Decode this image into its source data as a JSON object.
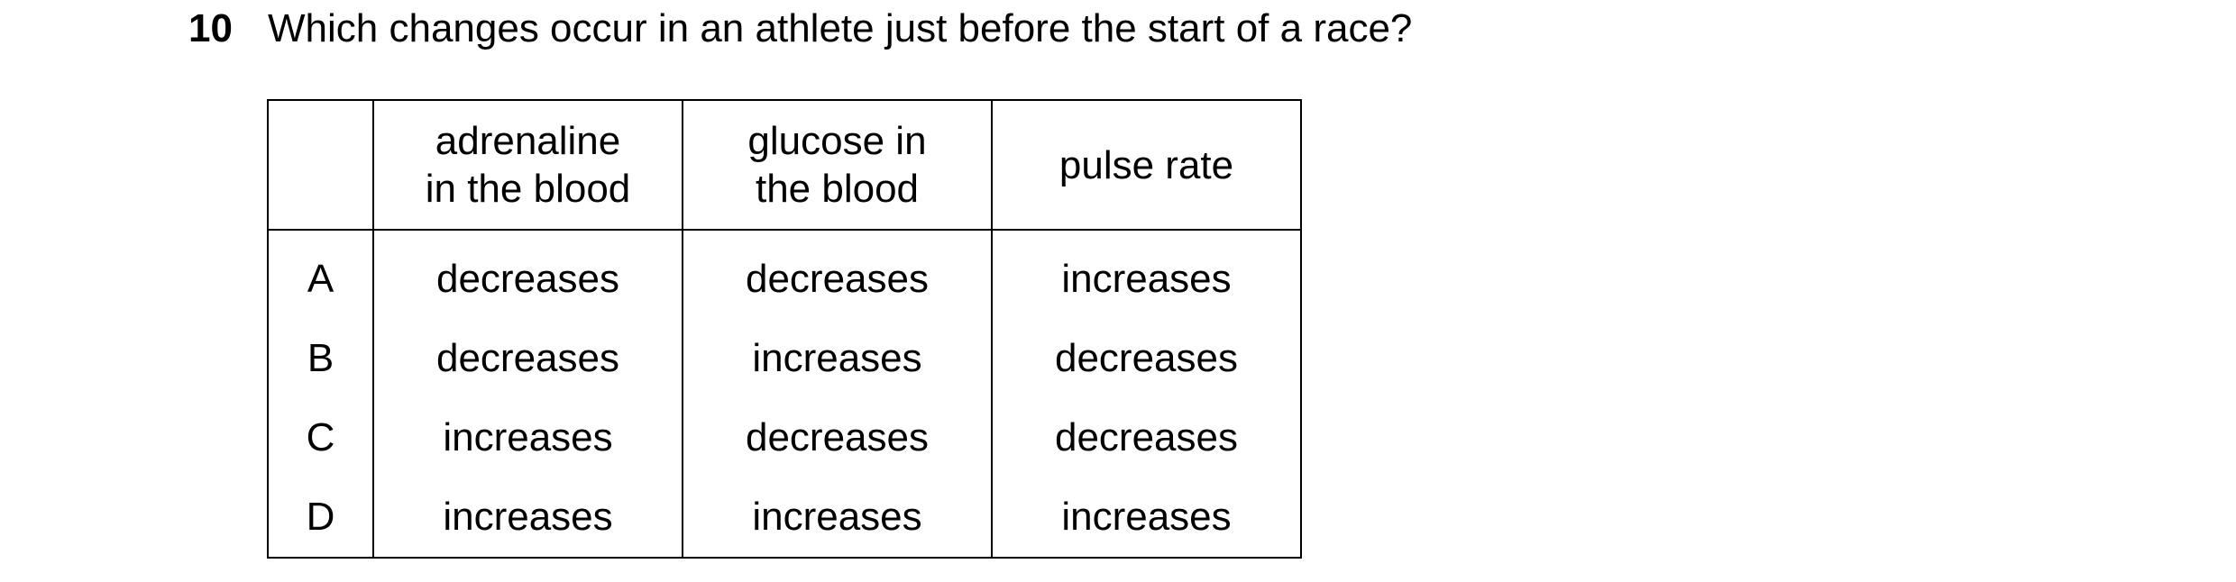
{
  "question": {
    "number": "10",
    "text": "Which changes occur in an athlete just before the start of a race?"
  },
  "table": {
    "headers": [
      {
        "line1": "adrenaline",
        "line2": "in the blood"
      },
      {
        "line1": "glucose in",
        "line2": "the blood"
      },
      {
        "line1": "pulse rate",
        "line2": ""
      }
    ],
    "rows": [
      {
        "letter": "A",
        "cells": [
          "decreases",
          "decreases",
          "increases"
        ]
      },
      {
        "letter": "B",
        "cells": [
          "decreases",
          "increases",
          "decreases"
        ]
      },
      {
        "letter": "C",
        "cells": [
          "increases",
          "decreases",
          "decreases"
        ]
      },
      {
        "letter": "D",
        "cells": [
          "increases",
          "increases",
          "increases"
        ]
      }
    ]
  }
}
